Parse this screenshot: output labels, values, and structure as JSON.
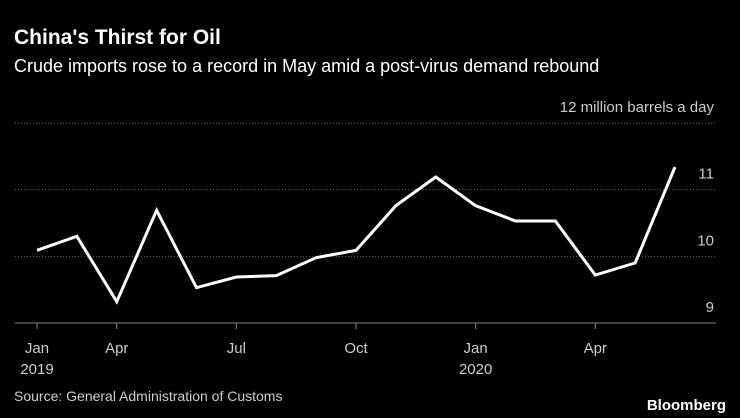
{
  "chart_data": {
    "type": "line",
    "title": "China's Thirst for Oil",
    "subtitle": "Crude imports rose to a record in May amid a post-virus demand rebound",
    "source": "Source: General Administration of Customs",
    "brand": "Bloomberg",
    "categories": [
      "Jan",
      null,
      "Apr",
      null,
      null,
      "Jul",
      null,
      null,
      "Oct",
      null,
      null,
      "Jan",
      null,
      null,
      "Apr",
      null,
      null
    ],
    "category_years": [
      "2019",
      null,
      null,
      null,
      null,
      null,
      null,
      null,
      null,
      null,
      null,
      "2020",
      null,
      null,
      null,
      null,
      null
    ],
    "series": [
      {
        "name": "Crude imports",
        "color": "#ffffff",
        "values": [
          10.09,
          10.3,
          9.32,
          10.69,
          9.53,
          9.69,
          9.71,
          9.98,
          10.09,
          10.76,
          11.19,
          10.76,
          10.53,
          10.53,
          9.72,
          9.9,
          11.34
        ]
      }
    ],
    "ylim": [
      9,
      12
    ],
    "yticks": [
      9,
      10,
      11,
      {
        "value": 12,
        "label": "12 million barrels a day"
      }
    ],
    "grid": true
  }
}
